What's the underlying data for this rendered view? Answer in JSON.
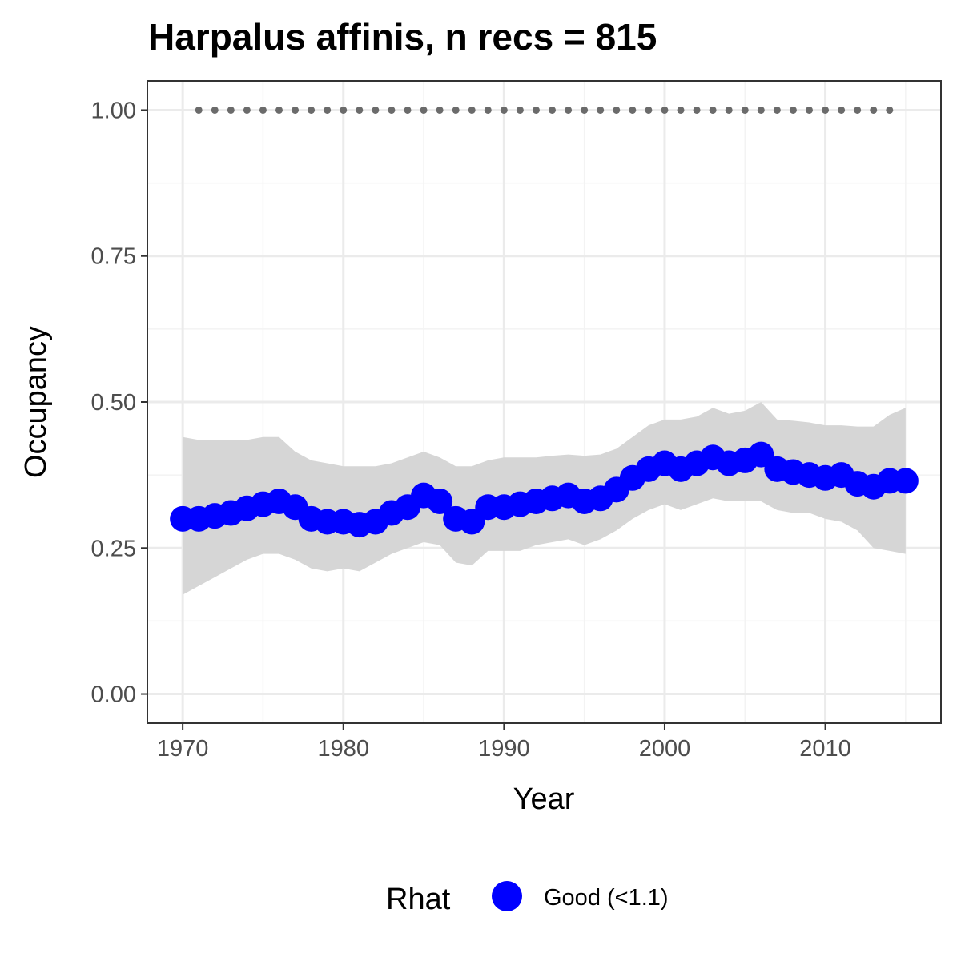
{
  "chart_data": {
    "type": "line",
    "title": "Harpalus affinis, n recs = 815",
    "xlabel": "Year",
    "ylabel": "Occupancy",
    "xlim": [
      1967.8,
      1017.2
    ],
    "xlim_note": "",
    "ylim": [
      -0.05,
      1.05
    ],
    "x_ticks": [
      1970,
      1980,
      1990,
      2000,
      2010
    ],
    "x_tick_labels": [
      "1970",
      "1980",
      "1990",
      "2000",
      "2010"
    ],
    "y_ticks": [
      0,
      0.25,
      0.5,
      0.75,
      1
    ],
    "y_tick_labels": [
      "0.00",
      "0.25",
      "0.50",
      "0.75",
      "1.00"
    ],
    "grid": true,
    "legend": {
      "title": "Rhat",
      "position": "bottom",
      "entries": [
        {
          "label": "Good (<1.1)",
          "color": "#0000ff"
        }
      ]
    },
    "colors": {
      "series": "#0000ff",
      "ribbon": "#d6d6d6",
      "reference_points": "#6b6b6b",
      "panel_border": "#333333",
      "grid": "#ebebeb"
    },
    "series": [
      {
        "x": [
          1970,
          1971,
          1972,
          1973,
          1974,
          1975,
          1976,
          1977,
          1978,
          1979,
          1980,
          1981,
          1982,
          1983,
          1984,
          1985,
          1986,
          1987,
          1988,
          1989,
          1990,
          1991,
          1992,
          1993,
          1994,
          1995,
          1996,
          1997,
          1998,
          1999,
          2000,
          2001,
          2002,
          2003,
          2004,
          2005,
          2006,
          2007,
          2008,
          2009,
          2010,
          2011,
          2012,
          2013,
          2014,
          2015
        ],
        "values": [
          0.3,
          0.3,
          0.305,
          0.31,
          0.318,
          0.325,
          0.33,
          0.32,
          0.3,
          0.295,
          0.295,
          0.29,
          0.295,
          0.31,
          0.32,
          0.34,
          0.33,
          0.3,
          0.295,
          0.32,
          0.32,
          0.325,
          0.33,
          0.335,
          0.34,
          0.33,
          0.335,
          0.35,
          0.37,
          0.385,
          0.395,
          0.385,
          0.395,
          0.405,
          0.395,
          0.4,
          0.41,
          0.385,
          0.38,
          0.375,
          0.37,
          0.375,
          0.36,
          0.355,
          0.365,
          0.365
        ],
        "lower": [
          0.17,
          0.185,
          0.2,
          0.215,
          0.23,
          0.24,
          0.24,
          0.23,
          0.215,
          0.21,
          0.215,
          0.21,
          0.225,
          0.24,
          0.25,
          0.26,
          0.255,
          0.225,
          0.22,
          0.245,
          0.245,
          0.245,
          0.255,
          0.26,
          0.265,
          0.255,
          0.265,
          0.28,
          0.3,
          0.315,
          0.325,
          0.315,
          0.325,
          0.335,
          0.33,
          0.33,
          0.33,
          0.315,
          0.31,
          0.31,
          0.3,
          0.295,
          0.28,
          0.25,
          0.245,
          0.24
        ],
        "upper": [
          0.44,
          0.435,
          0.435,
          0.435,
          0.435,
          0.44,
          0.44,
          0.415,
          0.4,
          0.395,
          0.39,
          0.39,
          0.39,
          0.395,
          0.405,
          0.415,
          0.405,
          0.39,
          0.39,
          0.4,
          0.405,
          0.405,
          0.405,
          0.408,
          0.41,
          0.408,
          0.41,
          0.42,
          0.44,
          0.46,
          0.47,
          0.47,
          0.475,
          0.49,
          0.48,
          0.485,
          0.5,
          0.47,
          0.468,
          0.465,
          0.46,
          0.46,
          0.458,
          0.458,
          0.478,
          0.49
        ]
      }
    ],
    "reference_points": {
      "x": [
        1971,
        1972,
        1973,
        1974,
        1975,
        1976,
        1977,
        1978,
        1979,
        1980,
        1981,
        1982,
        1983,
        1984,
        1985,
        1986,
        1987,
        1988,
        1989,
        1990,
        1991,
        1992,
        1993,
        1994,
        1995,
        1996,
        1997,
        1998,
        1999,
        2000,
        2001,
        2002,
        2003,
        2004,
        2005,
        2006,
        2007,
        2008,
        2009,
        2010,
        2011,
        2012,
        2013,
        2014
      ],
      "value": 1.0
    }
  }
}
